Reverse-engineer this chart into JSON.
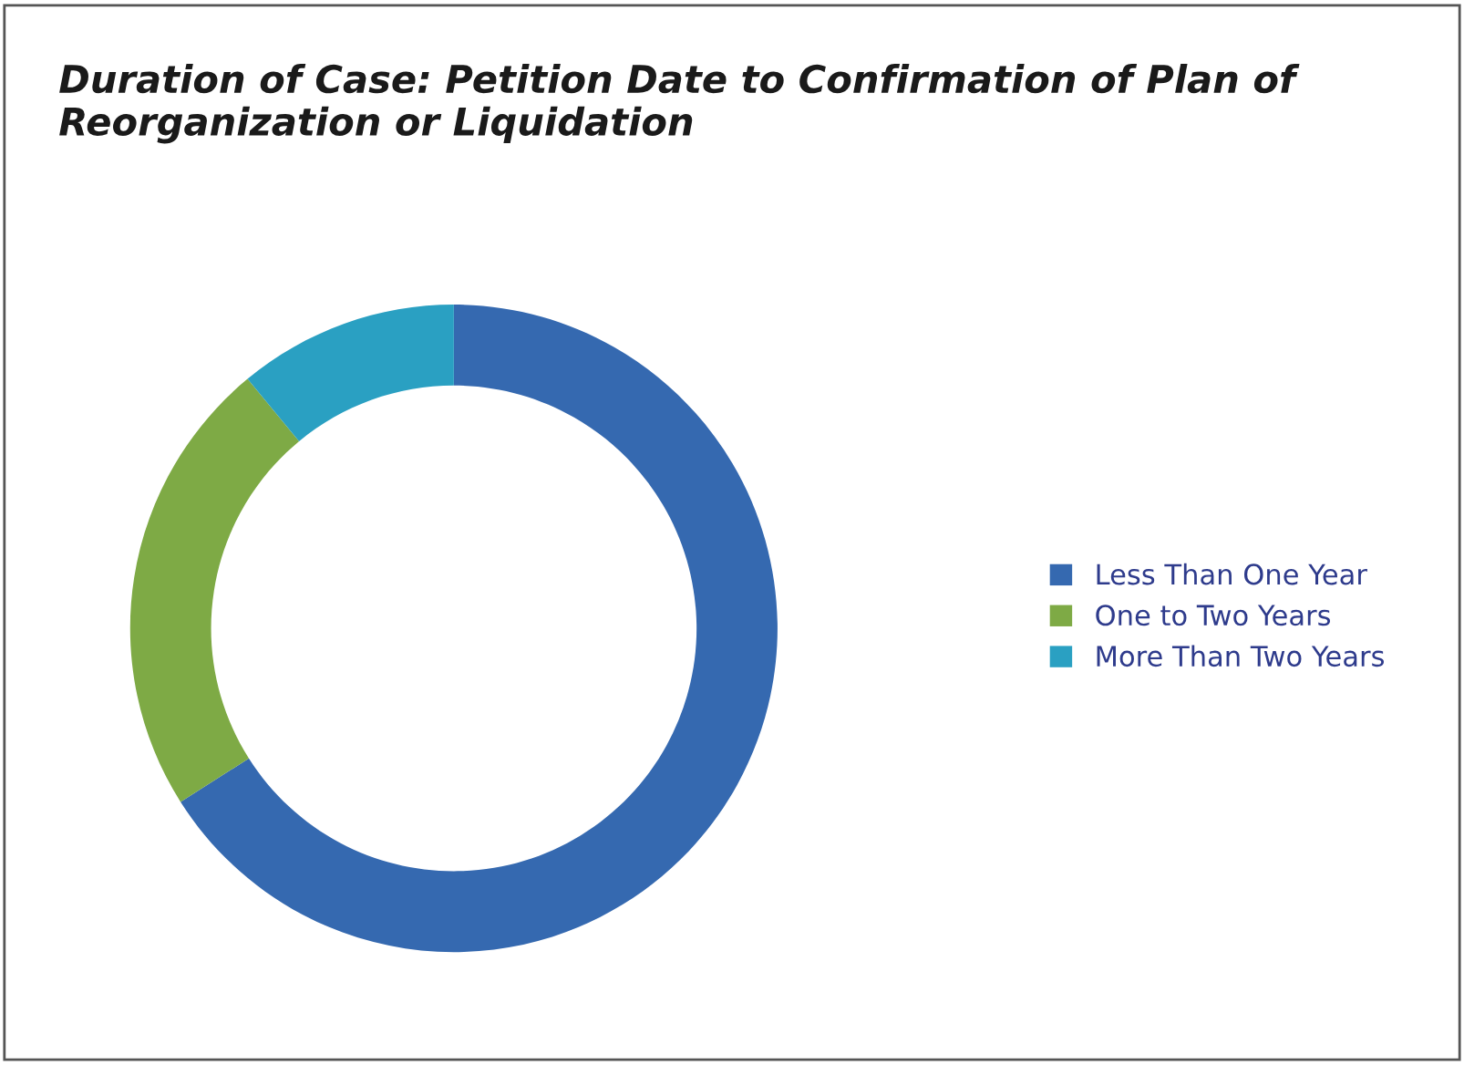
{
  "chart_data": {
    "type": "donut",
    "title": "Duration of Case: Petition Date to Confirmation of Plan of\nReorganization or Liquidation",
    "categories": [
      "Less Than One Year",
      "One to Two Years",
      "More Than Two Years"
    ],
    "values": [
      66,
      23,
      11
    ],
    "colors": [
      "#3569b0",
      "#7eaa45",
      "#2aa0c2"
    ],
    "legend": "right"
  }
}
